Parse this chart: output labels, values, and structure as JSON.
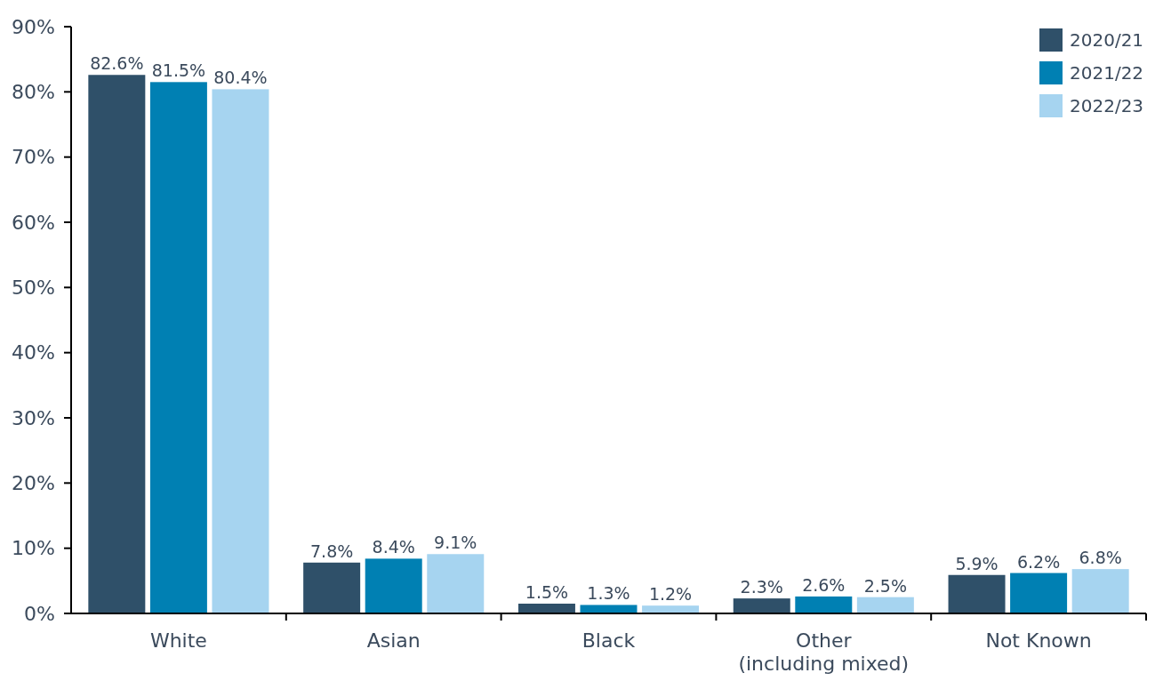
{
  "chart_data": {
    "type": "bar",
    "categories": [
      "White",
      "Asian",
      "Black",
      "Other (including mixed)",
      "Not Known"
    ],
    "series": [
      {
        "name": "2020/21",
        "color": "#2f5069",
        "values": [
          82.6,
          7.8,
          1.5,
          2.3,
          5.9
        ],
        "value_labels": [
          "82.6%",
          "7.8%",
          "1.5%",
          "2.3%",
          "5.9%"
        ]
      },
      {
        "name": "2021/22",
        "color": "#0080b3",
        "values": [
          81.5,
          8.4,
          1.3,
          2.6,
          6.2
        ],
        "value_labels": [
          "81.5%",
          "8.4%",
          "1.3%",
          "2.6%",
          "6.2%"
        ]
      },
      {
        "name": "2022/23",
        "color": "#a6d4f0",
        "values": [
          80.4,
          9.1,
          1.2,
          2.5,
          6.8
        ],
        "value_labels": [
          "80.4%",
          "9.1%",
          "1.2%",
          "2.5%",
          "6.8%"
        ]
      }
    ],
    "ylim": [
      0,
      90
    ],
    "yticks": [
      {
        "value": 0,
        "label": "0%"
      },
      {
        "value": 10,
        "label": "10%"
      },
      {
        "value": 20,
        "label": "20%"
      },
      {
        "value": 30,
        "label": "30%"
      },
      {
        "value": 40,
        "label": "40%"
      },
      {
        "value": 50,
        "label": "50%"
      },
      {
        "value": 60,
        "label": "60%"
      },
      {
        "value": 70,
        "label": "70%"
      },
      {
        "value": 80,
        "label": "80%"
      },
      {
        "value": 90,
        "label": "90%"
      }
    ],
    "grid": false,
    "legend": "top right"
  }
}
